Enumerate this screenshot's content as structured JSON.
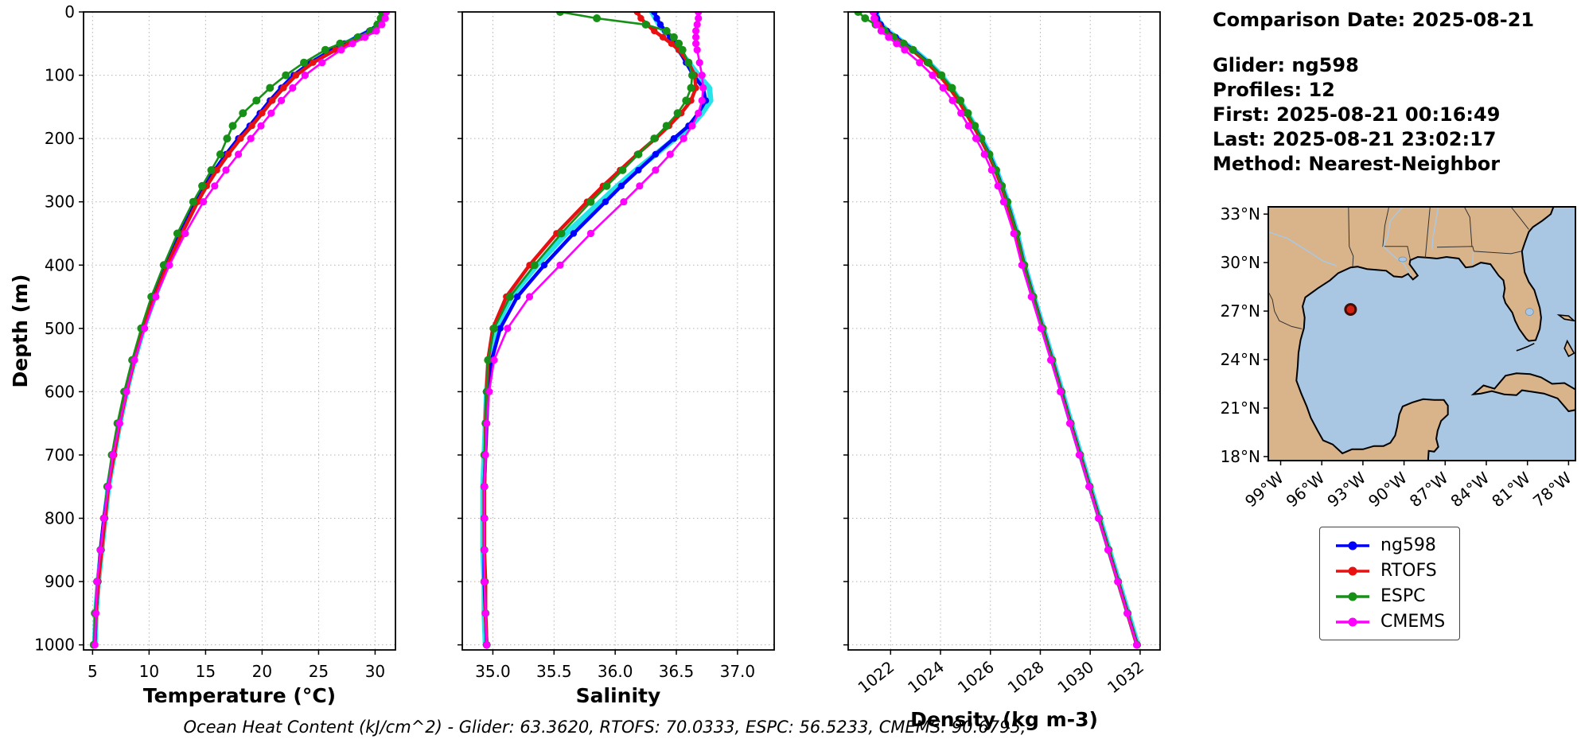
{
  "meta": {
    "comparison_date": "Comparison Date: 2025-08-21",
    "glider": "Glider: ng598",
    "profiles": "Profiles: 12",
    "first": "First: 2025-08-21 00:16:49",
    "last": "Last: 2025-08-21 23:02:17",
    "method": "Method: Nearest-Neighbor"
  },
  "footer": {
    "ohc": "Ocean Heat Content (kJ/cm^2) - Glider: 63.3620,  RTOFS: 70.0333,  ESPC: 56.5233,  CMEMS: 90.6795,"
  },
  "legend": {
    "entries": [
      {
        "label": "ng598",
        "color": "#0000ff"
      },
      {
        "label": "RTOFS",
        "color": "#e81010"
      },
      {
        "label": "ESPC",
        "color": "#169016"
      },
      {
        "label": "CMEMS",
        "color": "#ff00ff"
      }
    ]
  },
  "map": {
    "lat_tick_values": [
      33,
      30,
      27,
      24,
      21,
      18
    ],
    "lat_tick_labels": [
      "33°N",
      "30°N",
      "27°N",
      "24°N",
      "21°N",
      "18°N"
    ],
    "lon_tick_values": [
      -99,
      -96,
      -93,
      -90,
      -87,
      -84,
      -81,
      -78
    ],
    "lon_tick_labels": [
      "99°W",
      "96°W",
      "93°W",
      "90°W",
      "87°W",
      "84°W",
      "81°W",
      "78°W"
    ],
    "marker": {
      "lon": -93.9,
      "lat": 27.1,
      "fill": "#d42010",
      "edge": "#401008"
    },
    "colors": {
      "land": "#d9b48b",
      "ocean": "#a9c6e2",
      "river": "#a7c9e6",
      "coast": "#000000"
    }
  },
  "chart_data": [
    {
      "type": "line",
      "xlabel": "Temperature (°C)",
      "ylabel": "Depth (m)",
      "xlim": [
        4.2,
        31.8
      ],
      "ylim": [
        0,
        1008
      ],
      "xticks": [
        5,
        10,
        15,
        20,
        25,
        30
      ],
      "xtick_labels": [
        "5",
        "10",
        "15",
        "20",
        "25",
        "30"
      ],
      "yticks": [
        0,
        100,
        200,
        300,
        400,
        500,
        600,
        700,
        800,
        900,
        1000
      ],
      "ytick_labels": [
        "0",
        "100",
        "200",
        "300",
        "400",
        "500",
        "600",
        "700",
        "800",
        "900",
        "1000"
      ],
      "show_ytick_labels": true,
      "rotate_xtick_labels": false,
      "grid": true,
      "depths": [
        0,
        10,
        20,
        30,
        40,
        50,
        60,
        80,
        100,
        120,
        140,
        160,
        180,
        200,
        225,
        250,
        275,
        300,
        350,
        400,
        450,
        500,
        550,
        600,
        650,
        700,
        750,
        800,
        850,
        900,
        950,
        1000
      ],
      "series": [
        {
          "name": "glider-raw-profiles",
          "color": "#00e0e6",
          "width": 7,
          "opacity": 0.85,
          "markers": false,
          "marker_size": 0,
          "values": [
            30.9,
            30.8,
            30.4,
            29.6,
            28.5,
            27.4,
            26.3,
            24.4,
            22.9,
            21.8,
            20.8,
            19.9,
            19.0,
            18.0,
            16.9,
            15.9,
            15.0,
            14.2,
            12.8,
            11.6,
            10.5,
            9.5,
            8.7,
            8.0,
            7.4,
            6.9,
            6.4,
            6.1,
            5.8,
            5.5,
            5.3,
            5.2
          ]
        },
        {
          "name": "ng598",
          "color": "#0000ff",
          "width": 4.5,
          "opacity": 1,
          "markers": true,
          "marker_size": 4.2,
          "values": [
            30.8,
            30.7,
            30.3,
            29.5,
            28.4,
            27.3,
            26.2,
            24.3,
            22.8,
            21.7,
            20.7,
            19.8,
            18.9,
            17.9,
            16.8,
            15.8,
            14.9,
            14.1,
            12.7,
            11.5,
            10.4,
            9.4,
            8.6,
            7.9,
            7.3,
            6.8,
            6.4,
            6.0,
            5.7,
            5.5,
            5.3,
            5.2
          ]
        },
        {
          "name": "RTOFS",
          "color": "#e81010",
          "width": 4.5,
          "opacity": 1,
          "markers": true,
          "marker_size": 4.2,
          "values": [
            30.9,
            30.8,
            30.5,
            29.8,
            28.8,
            27.7,
            26.5,
            24.5,
            23.0,
            21.9,
            20.9,
            20.0,
            19.1,
            18.1,
            17.0,
            16.0,
            15.1,
            14.3,
            12.9,
            11.6,
            10.5,
            9.5,
            8.7,
            8.0,
            7.4,
            6.9,
            6.4,
            6.1,
            5.8,
            5.5,
            5.3,
            5.2
          ]
        },
        {
          "name": "ESPC",
          "color": "#169016",
          "width": 2.6,
          "opacity": 1,
          "markers": true,
          "marker_size": 5,
          "values": [
            30.6,
            30.5,
            30.2,
            29.6,
            28.5,
            26.9,
            25.6,
            23.7,
            22.1,
            20.7,
            19.5,
            18.3,
            17.4,
            16.9,
            16.3,
            15.5,
            14.7,
            13.9,
            12.5,
            11.3,
            10.2,
            9.3,
            8.5,
            7.8,
            7.2,
            6.7,
            6.3,
            6.0,
            5.7,
            5.4,
            5.2,
            5.1
          ]
        },
        {
          "name": "CMEMS",
          "color": "#ff00ff",
          "width": 2.6,
          "opacity": 1,
          "markers": true,
          "marker_size": 4.6,
          "values": [
            31.0,
            30.9,
            30.6,
            30.1,
            29.1,
            28.0,
            27.0,
            25.3,
            23.8,
            22.7,
            21.7,
            20.8,
            19.9,
            19.0,
            17.9,
            16.8,
            15.8,
            14.8,
            13.2,
            11.8,
            10.6,
            9.6,
            8.7,
            8.0,
            7.4,
            6.8,
            6.4,
            6.0,
            5.7,
            5.4,
            5.3,
            5.2
          ]
        }
      ]
    },
    {
      "type": "line",
      "xlabel": "Salinity",
      "ylabel": "",
      "xlim": [
        34.75,
        37.3
      ],
      "ylim": [
        0,
        1008
      ],
      "xticks": [
        35.0,
        35.5,
        36.0,
        36.5,
        37.0
      ],
      "xtick_labels": [
        "35.0",
        "35.5",
        "36.0",
        "36.5",
        "37.0"
      ],
      "yticks": [
        0,
        100,
        200,
        300,
        400,
        500,
        600,
        700,
        800,
        900,
        1000
      ],
      "ytick_labels": [
        "0",
        "100",
        "200",
        "300",
        "400",
        "500",
        "600",
        "700",
        "800",
        "900",
        "1000"
      ],
      "show_ytick_labels": false,
      "rotate_xtick_labels": false,
      "grid": true,
      "depths": [
        0,
        10,
        20,
        30,
        40,
        50,
        60,
        80,
        100,
        120,
        140,
        160,
        180,
        200,
        225,
        250,
        275,
        300,
        350,
        400,
        450,
        500,
        550,
        600,
        650,
        700,
        750,
        800,
        850,
        900,
        950,
        1000
      ],
      "series": [
        {
          "name": "glider-raw-profiles",
          "color": "#00e0e6",
          "width": 7,
          "opacity": 0.85,
          "markers": false,
          "marker_size": 0,
          "values": [
            36.3,
            36.33,
            36.36,
            36.4,
            36.44,
            36.48,
            36.52,
            36.6,
            36.68,
            36.77,
            36.78,
            36.71,
            36.62,
            36.49,
            36.33,
            36.17,
            36.02,
            35.88,
            35.6,
            35.36,
            35.15,
            35.02,
            34.97,
            34.95,
            34.94,
            34.93,
            34.92,
            34.92,
            34.92,
            34.93,
            34.93,
            34.94
          ]
        },
        {
          "name": "ng598",
          "color": "#0000ff",
          "width": 4.5,
          "opacity": 1,
          "markers": true,
          "marker_size": 4.2,
          "values": [
            36.32,
            36.34,
            36.37,
            36.41,
            36.45,
            36.49,
            36.52,
            36.58,
            36.64,
            36.72,
            36.74,
            36.68,
            36.6,
            36.48,
            36.33,
            36.19,
            36.05,
            35.92,
            35.66,
            35.42,
            35.2,
            35.06,
            34.99,
            34.96,
            34.95,
            34.94,
            34.93,
            34.93,
            34.93,
            34.93,
            34.94,
            34.95
          ]
        },
        {
          "name": "RTOFS",
          "color": "#e81010",
          "width": 4.5,
          "opacity": 1,
          "markers": true,
          "marker_size": 4.2,
          "values": [
            36.18,
            36.21,
            36.26,
            36.32,
            36.39,
            36.46,
            36.52,
            36.6,
            36.65,
            36.66,
            36.62,
            36.54,
            36.44,
            36.33,
            36.18,
            36.04,
            35.9,
            35.77,
            35.52,
            35.3,
            35.11,
            35.0,
            34.96,
            34.95,
            34.94,
            34.94,
            34.93,
            34.93,
            34.93,
            34.94,
            34.94,
            34.95
          ]
        },
        {
          "name": "ESPC",
          "color": "#169016",
          "width": 2.6,
          "opacity": 1,
          "markers": true,
          "marker_size": 5,
          "values": [
            35.55,
            35.85,
            36.25,
            36.42,
            36.48,
            36.52,
            36.55,
            36.6,
            36.63,
            36.62,
            36.58,
            36.51,
            36.42,
            36.32,
            36.19,
            36.06,
            35.93,
            35.8,
            35.56,
            35.34,
            35.14,
            35.01,
            34.96,
            34.95,
            34.94,
            34.93,
            34.93,
            34.93,
            34.93,
            34.93,
            34.94,
            34.95
          ]
        },
        {
          "name": "CMEMS",
          "color": "#ff00ff",
          "width": 2.6,
          "opacity": 1,
          "markers": true,
          "marker_size": 4.6,
          "values": [
            36.68,
            36.68,
            36.67,
            36.66,
            36.66,
            36.66,
            36.67,
            36.69,
            36.71,
            36.72,
            36.71,
            36.68,
            36.63,
            36.56,
            36.45,
            36.33,
            36.2,
            36.07,
            35.8,
            35.55,
            35.3,
            35.12,
            35.01,
            34.97,
            34.95,
            34.94,
            34.93,
            34.93,
            34.93,
            34.93,
            34.94,
            34.95
          ]
        }
      ]
    },
    {
      "type": "line",
      "xlabel": "Density (kg m-3)",
      "ylabel": "",
      "xlim": [
        1020.3,
        1032.8
      ],
      "ylim": [
        0,
        1008
      ],
      "xticks": [
        1022,
        1024,
        1026,
        1028,
        1030,
        1032
      ],
      "xtick_labels": [
        "1022",
        "1024",
        "1026",
        "1028",
        "1030",
        "1032"
      ],
      "yticks": [
        0,
        100,
        200,
        300,
        400,
        500,
        600,
        700,
        800,
        900,
        1000
      ],
      "ytick_labels": [
        "0",
        "100",
        "200",
        "300",
        "400",
        "500",
        "600",
        "700",
        "800",
        "900",
        "1000"
      ],
      "show_ytick_labels": false,
      "rotate_xtick_labels": true,
      "grid": true,
      "depths": [
        0,
        10,
        20,
        30,
        40,
        50,
        60,
        80,
        100,
        120,
        140,
        160,
        180,
        200,
        225,
        250,
        275,
        300,
        350,
        400,
        450,
        500,
        550,
        600,
        650,
        700,
        750,
        800,
        850,
        900,
        950,
        1000
      ],
      "series": [
        {
          "name": "glider-raw-profiles",
          "color": "#00e0e6",
          "width": 7,
          "opacity": 0.85,
          "markers": false,
          "marker_size": 0,
          "values": [
            1021.42,
            1021.47,
            1021.62,
            1021.87,
            1022.22,
            1022.57,
            1022.92,
            1023.52,
            1024.02,
            1024.42,
            1024.77,
            1025.07,
            1025.37,
            1025.64,
            1025.97,
            1026.24,
            1026.47,
            1026.69,
            1027.07,
            1027.37,
            1027.74,
            1028.12,
            1028.5,
            1028.87,
            1029.24,
            1029.62,
            1030.0,
            1030.38,
            1030.76,
            1031.14,
            1031.52,
            1031.9
          ]
        },
        {
          "name": "ng598",
          "color": "#0000ff",
          "width": 4.5,
          "opacity": 1,
          "markers": true,
          "marker_size": 4.2,
          "values": [
            1021.4,
            1021.45,
            1021.6,
            1021.85,
            1022.2,
            1022.55,
            1022.9,
            1023.5,
            1024.0,
            1024.4,
            1024.75,
            1025.05,
            1025.35,
            1025.62,
            1025.95,
            1026.22,
            1026.45,
            1026.67,
            1027.05,
            1027.35,
            1027.72,
            1028.1,
            1028.48,
            1028.85,
            1029.22,
            1029.6,
            1029.98,
            1030.36,
            1030.74,
            1031.12,
            1031.5,
            1031.88
          ]
        },
        {
          "name": "RTOFS",
          "color": "#e81010",
          "width": 4.5,
          "opacity": 1,
          "markers": true,
          "marker_size": 4.2,
          "values": [
            1021.32,
            1021.38,
            1021.52,
            1021.78,
            1022.14,
            1022.5,
            1022.86,
            1023.46,
            1023.96,
            1024.36,
            1024.72,
            1025.02,
            1025.32,
            1025.6,
            1025.93,
            1026.2,
            1026.44,
            1026.66,
            1027.04,
            1027.34,
            1027.71,
            1028.09,
            1028.47,
            1028.84,
            1029.21,
            1029.59,
            1029.97,
            1030.35,
            1030.73,
            1031.11,
            1031.49,
            1031.87
          ]
        },
        {
          "name": "ESPC",
          "color": "#169016",
          "width": 2.6,
          "opacity": 1,
          "markers": true,
          "marker_size": 5,
          "values": [
            1020.7,
            1020.98,
            1021.4,
            1021.76,
            1022.12,
            1022.52,
            1022.9,
            1023.52,
            1024.04,
            1024.46,
            1024.8,
            1025.1,
            1025.38,
            1025.64,
            1025.96,
            1026.23,
            1026.46,
            1026.68,
            1027.06,
            1027.36,
            1027.72,
            1028.1,
            1028.48,
            1028.85,
            1029.22,
            1029.6,
            1029.98,
            1030.36,
            1030.74,
            1031.12,
            1031.5,
            1031.88
          ]
        },
        {
          "name": "CMEMS",
          "color": "#ff00ff",
          "width": 2.6,
          "opacity": 1,
          "markers": true,
          "marker_size": 4.6,
          "values": [
            1021.3,
            1021.34,
            1021.44,
            1021.62,
            1021.92,
            1022.24,
            1022.56,
            1023.16,
            1023.68,
            1024.1,
            1024.48,
            1024.82,
            1025.12,
            1025.42,
            1025.76,
            1026.05,
            1026.3,
            1026.53,
            1026.94,
            1027.26,
            1027.64,
            1028.03,
            1028.42,
            1028.8,
            1029.18,
            1029.56,
            1029.95,
            1030.33,
            1030.71,
            1031.1,
            1031.48,
            1031.86
          ]
        }
      ]
    }
  ]
}
